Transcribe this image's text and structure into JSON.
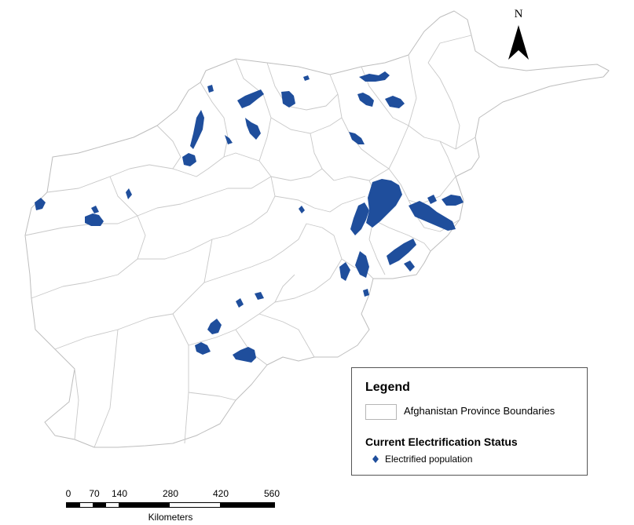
{
  "north_label": "N",
  "legend": {
    "title": "Legend",
    "province_label": "Afghanistan Province Boundaries",
    "section_title": "Current Electrification Status",
    "electrified_label": "Electrified population"
  },
  "scale_bar": {
    "ticks": [
      "0",
      "70",
      "140",
      "280",
      "420",
      "560"
    ],
    "unit": "Kilometers"
  },
  "colors": {
    "electrified": "#1f4e9c",
    "boundary": "#c8c8c8"
  },
  "icons": {
    "north_arrow": "north-arrow-icon",
    "electrified_marker": "diamond-icon"
  }
}
